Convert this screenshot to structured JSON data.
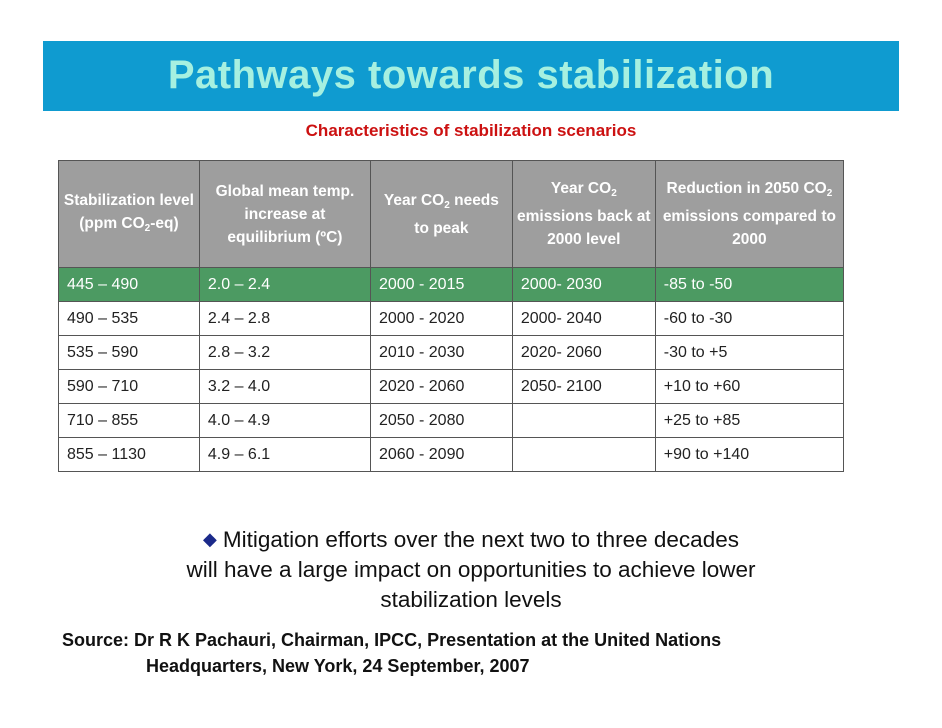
{
  "banner": {
    "title": "Pathways towards stabilization"
  },
  "subtitle": "Characteristics of stabilization scenarios",
  "table": {
    "headers": [
      {
        "pre": "Stabilization level (ppm CO",
        "sub": "2",
        "post": "-eq)"
      },
      {
        "pre": "Global mean temp. increase at equilibrium (ºC)",
        "sub": "",
        "post": ""
      },
      {
        "pre": "Year CO",
        "sub": "2",
        "post": " needs to peak"
      },
      {
        "pre": "Year CO",
        "sub": "2",
        "post": " emissions back at 2000 level"
      },
      {
        "pre": "Reduction in 2050 CO",
        "sub": "2",
        "post": " emissions compared to 2000"
      }
    ],
    "rows": [
      [
        "445 – 490",
        "2.0 – 2.4",
        "2000 - 2015",
        "2000- 2030",
        "-85 to -50"
      ],
      [
        "490 – 535",
        "2.4 – 2.8",
        "2000 - 2020",
        "2000- 2040",
        "-60 to -30"
      ],
      [
        "535 – 590",
        "2.8 – 3.2",
        "2010 - 2030",
        "2020- 2060",
        "-30 to +5"
      ],
      [
        "590 – 710",
        "3.2 – 4.0",
        "2020 - 2060",
        "2050- 2100",
        "+10 to +60"
      ],
      [
        "710 – 855",
        "4.0 – 4.9",
        "2050 - 2080",
        "",
        "+25 to +85"
      ],
      [
        "855 – 1130",
        "4.9 – 6.1",
        "2060 - 2090",
        "",
        "+90 to +140"
      ]
    ],
    "highlight_color": "#4c9a62",
    "header_color": "#9e9e9e"
  },
  "bullet": {
    "icon": "diamond-bullet-icon",
    "line1": "Mitigation efforts over the next two to three decades",
    "line2": "will have a large impact on opportunities to achieve lower",
    "line3": "stabilization levels"
  },
  "source": {
    "line1": "Source: Dr R K Pachauri, Chairman, IPCC, Presentation at the United Nations",
    "line2": "Headquarters, New York, 24 September, 2007"
  },
  "colors": {
    "banner": "#0f9bd0",
    "banner_text": "#a6f0e0",
    "subtitle": "#cc1111"
  }
}
